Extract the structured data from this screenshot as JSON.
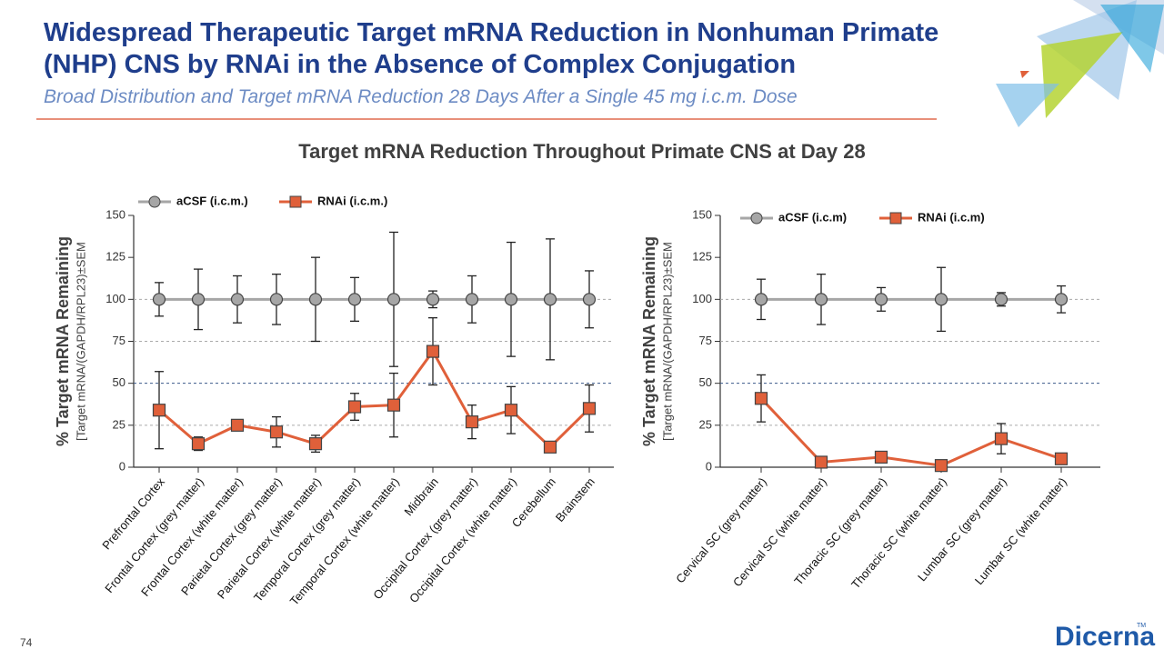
{
  "slide": {
    "title_line1": "Widespread Therapeutic Target mRNA Reduction in Nonhuman Primate",
    "title_line2": "(NHP) CNS by RNAi in the Absence of Complex Conjugation",
    "subtitle": "Broad Distribution and Target mRNA Reduction 28 Days After a Single 45 mg i.c.m. Dose",
    "heading": "Target mRNA Reduction Throughout Primate CNS at Day 28",
    "page_number": "74",
    "logo": "Dicerna",
    "logo_mark": "TM"
  },
  "chart_data": [
    {
      "type": "line",
      "y_label": "% Target mRNA Remaining",
      "y_label_note": "[Target mRNA/(GAPDH/RPL23)±SEM",
      "categories": [
        "Prefrontal Cortex",
        "Frontal Cortex (grey matter)",
        "Frontal Cortex (white matter)",
        "Parietal Cortex (grey matter)",
        "Parietal Cortex (white matter)",
        "Temporal Cortex (grey matter)",
        "Temporal Cortex (white matter)",
        "Midbrain",
        "Occipital Cortex (grey matter)",
        "Occipital Cortex (white matter)",
        "Cerebellum",
        "Brainstem"
      ],
      "series": [
        {
          "name": "aCSF (i.c.m.)",
          "color": "#a6a6a6",
          "marker": "circle",
          "values": [
            100,
            100,
            100,
            100,
            100,
            100,
            100,
            100,
            100,
            100,
            100,
            100
          ],
          "errors": [
            10,
            18,
            14,
            15,
            25,
            13,
            40,
            5,
            14,
            34,
            36,
            17
          ]
        },
        {
          "name": "RNAi (i.c.m.)",
          "color": "#e0603a",
          "marker": "square",
          "values": [
            34,
            14,
            25,
            21,
            14,
            36,
            37,
            69,
            27,
            34,
            12,
            35
          ],
          "errors": [
            23,
            4,
            2,
            9,
            5,
            8,
            19,
            20,
            10,
            14,
            2,
            14
          ]
        }
      ],
      "ylim": [
        0,
        150
      ],
      "yticks": [
        0,
        25,
        50,
        75,
        100,
        125,
        150
      ],
      "gridlines": [
        25,
        50,
        75,
        100
      ]
    },
    {
      "type": "line",
      "y_label": "% Target mRNA Remaining",
      "y_label_note": "[Target mRNA/(GAPDH/RPL23)±SEM",
      "categories": [
        "Cervical SC (grey matter)",
        "Cervical SC (white matter)",
        "Thoracic SC (grey matter)",
        "Thoracic SC (white matter)",
        "Lumbar SC (grey matter)",
        "Lumbar SC (white matter)"
      ],
      "series": [
        {
          "name": "aCSF (i.c.m)",
          "color": "#a6a6a6",
          "marker": "circle",
          "values": [
            100,
            100,
            100,
            100,
            100,
            100
          ],
          "errors": [
            12,
            15,
            7,
            19,
            4,
            8
          ]
        },
        {
          "name": "RNAi (i.c.m)",
          "color": "#e0603a",
          "marker": "square",
          "values": [
            41,
            3,
            6,
            1,
            17,
            5
          ],
          "errors": [
            14,
            1,
            1,
            1,
            9,
            1
          ]
        }
      ],
      "ylim": [
        0,
        150
      ],
      "yticks": [
        0,
        25,
        50,
        75,
        100,
        125,
        150
      ],
      "gridlines": [
        25,
        50,
        75,
        100
      ]
    }
  ]
}
